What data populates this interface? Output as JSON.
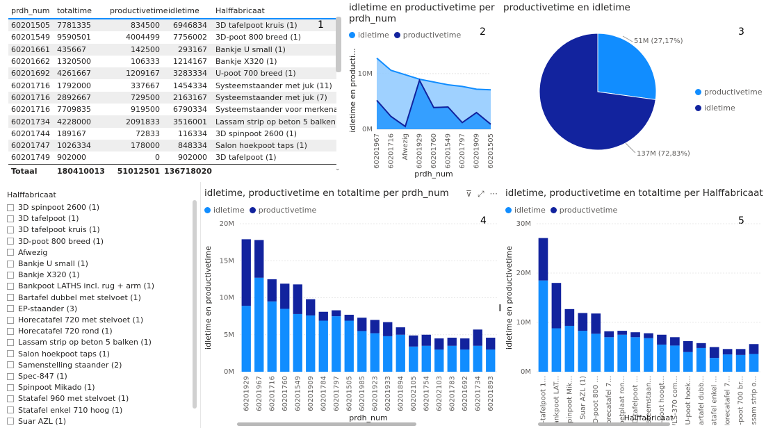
{
  "table": {
    "columns": [
      "prdh_num",
      "totaltime",
      "productivetime",
      "idletime",
      "Halffabricaat"
    ],
    "rows": [
      [
        "60201505",
        "7781335",
        "834500",
        "6946834",
        "3D tafelpoot kruis (1)"
      ],
      [
        "60201549",
        "9590501",
        "4004499",
        "7756002",
        "3D-poot 800 breed (1)"
      ],
      [
        "60201661",
        "435667",
        "142500",
        "293167",
        "Bankje U small (1)"
      ],
      [
        "60201662",
        "1320500",
        "106333",
        "1214167",
        "Bankje X320 (1)"
      ],
      [
        "60201692",
        "4261667",
        "1209167",
        "3283334",
        "U-poot 700 breed (1)"
      ],
      [
        "60201716",
        "1792000",
        "337667",
        "1454334",
        "Systeemstaander met juk (11)"
      ],
      [
        "60201716",
        "2892667",
        "729500",
        "2163167",
        "Systeemstaander met juk (7)"
      ],
      [
        "60201716",
        "7709835",
        "919500",
        "6790334",
        "Systeemstaander voor merkenafdeling"
      ],
      [
        "60201734",
        "4228000",
        "2091833",
        "3516001",
        "Lassam strip op beton 5 balken (1)"
      ],
      [
        "60201744",
        "189167",
        "72833",
        "116334",
        "3D spinpoot 2600 (1)"
      ],
      [
        "60201747",
        "1026334",
        "178000",
        "848334",
        "Salon hoekpoot taps (1)"
      ],
      [
        "60201749",
        "902000",
        "0",
        "902000",
        "3D tafelpoot (1)"
      ]
    ],
    "total": [
      "Totaal",
      "180410013",
      "51012501",
      "136718020",
      ""
    ],
    "marker": "1"
  },
  "colors": {
    "idle": "#118DFF",
    "productive": "#12239E",
    "idle_area": "#8EC9FF"
  },
  "area_chart": {
    "title": "idletime en productivetime per prdh_num",
    "legend": [
      "idletime",
      "productivetime"
    ],
    "marker": "2"
  },
  "pie_chart": {
    "title": "productivetime en idletime",
    "legend": [
      "productivetime",
      "idletime"
    ],
    "marker": "3"
  },
  "bar_chart_1": {
    "title": "idletime, productivetime en totaltime per prdh_num",
    "legend": [
      "idletime",
      "productivetime"
    ],
    "marker": "4"
  },
  "bar_chart_2": {
    "title": "idletime, productivetime en totaltime per Halffabricaat",
    "legend": [
      "idletime",
      "productivetime"
    ],
    "marker": "5"
  },
  "header_icons": {
    "filter": "⊽",
    "focus": "⤢",
    "more": "···"
  },
  "slicer": {
    "title": "Halffabricaat",
    "items": [
      "3D spinpoot 2600 (1)",
      "3D tafelpoot (1)",
      "3D tafelpoot kruis (1)",
      "3D-poot 800 breed (1)",
      "Afwezig",
      "Bankje U small (1)",
      "Bankje X320 (1)",
      "Bankpoot LATHS incl. rug + arm (1)",
      "Bartafel dubbel met stelvoet (1)",
      "EP-staander (3)",
      "Horecatafel 720 met stelvoet (1)",
      "Horecatafel 720 rond (1)",
      "Lassam strip op beton 5 balken (1)",
      "Salon hoekpoot taps (1)",
      "Samenstelling staander (2)",
      "Spec-847 (1)",
      "Spinpoot Mikado (1)",
      "Statafel 960 met stelvoet (1)",
      "Statafel enkel 710 hoog (1)",
      "Suar AZL (1)"
    ]
  },
  "chart_data": [
    {
      "type": "area",
      "title": "idletime en productivetime per prdh_num",
      "xlabel": "prdh_num",
      "ylabel": "idletime en producti...",
      "ylim": [
        0,
        14000000
      ],
      "yticks": [
        "0M",
        "10M"
      ],
      "categories": [
        "60201967",
        "60201716",
        "Afwezig",
        "60201929",
        "60201760",
        "60201549",
        "60201797",
        "60201909",
        "60201505"
      ],
      "series": [
        {
          "name": "idletime",
          "values": [
            12800000,
            10600000,
            9800000,
            9000000,
            8500000,
            8000000,
            7700000,
            7200000,
            7100000
          ]
        },
        {
          "name": "productivetime",
          "values": [
            5200000,
            2300000,
            500000,
            8800000,
            3900000,
            4000000,
            1200000,
            3000000,
            900000
          ]
        }
      ]
    },
    {
      "type": "pie",
      "title": "productivetime en idletime",
      "labels": [
        "productivetime",
        "idletime"
      ],
      "values": [
        51012501,
        136718020
      ],
      "data_labels": [
        "51M (27,17%)",
        "137M (72,83%)"
      ]
    },
    {
      "type": "bar",
      "stacked": true,
      "title": "idletime, productivetime en totaltime per prdh_num",
      "xlabel": "prdh_num",
      "ylabel": "idletime en productivetime",
      "ylim": [
        0,
        20000000
      ],
      "yticks": [
        "0M",
        "5M",
        "10M",
        "15M",
        "20M"
      ],
      "categories": [
        "60201929",
        "60201967",
        "60201716",
        "60201760",
        "60201549",
        "60201909",
        "60201784",
        "60201797",
        "60201505",
        "60201985",
        "60201923",
        "60201933",
        "60201894",
        "60202105",
        "60201754",
        "60202103",
        "60201783",
        "60201692",
        "60201734",
        "60201893"
      ],
      "series": [
        {
          "name": "idletime",
          "values": [
            8900000,
            12700000,
            9500000,
            8500000,
            7800000,
            7600000,
            6900000,
            7500000,
            6900000,
            5500000,
            5200000,
            4800000,
            5000000,
            3400000,
            3500000,
            3000000,
            3500000,
            3000000,
            3500000,
            3000000
          ]
        },
        {
          "name": "productivetime",
          "values": [
            9000000,
            5100000,
            3000000,
            3400000,
            4000000,
            2200000,
            1200000,
            800000,
            800000,
            1800000,
            1800000,
            1900000,
            1000000,
            1500000,
            1500000,
            1500000,
            1100000,
            1500000,
            2200000,
            1600000
          ]
        }
      ]
    },
    {
      "type": "bar",
      "stacked": true,
      "title": "idletime, productivetime en totaltime per Halffabricaat",
      "xlabel": "Halffabricaat",
      "ylabel": "idletime en productivetime",
      "ylim": [
        0,
        30000000
      ],
      "yticks": [
        "0M",
        "10M",
        "20M",
        "30M"
      ],
      "categories": [
        "V-tafelpoot 1...",
        "Bankpoot LAT...",
        "Spinpoot Mik...",
        "Suar AZL (1)",
        "3D-poot 800 ...",
        "Horecatafel 7...",
        "Voetplaat ron...",
        "3D tafelpoot ...",
        "Systeemstaan...",
        "X-poot hoogt...",
        "VLS-370 com...",
        "U-poot hoek...",
        "Bartafel dubb...",
        "Statafel enkel ...",
        "Horecatafel 7...",
        "U-poot 700 br...",
        "Lassam strip o..."
      ],
      "series": [
        {
          "name": "idletime",
          "values": [
            18500000,
            8800000,
            9300000,
            8300000,
            7700000,
            7000000,
            7500000,
            7000000,
            6800000,
            5500000,
            5300000,
            4000000,
            4800000,
            2800000,
            3500000,
            3400000,
            3600000
          ]
        },
        {
          "name": "productivetime",
          "values": [
            8600000,
            9200000,
            3400000,
            3600000,
            4100000,
            1200000,
            800000,
            1000000,
            1000000,
            2000000,
            1700000,
            2200000,
            1000000,
            2200000,
            1100000,
            1200000,
            2000000
          ]
        }
      ]
    }
  ]
}
